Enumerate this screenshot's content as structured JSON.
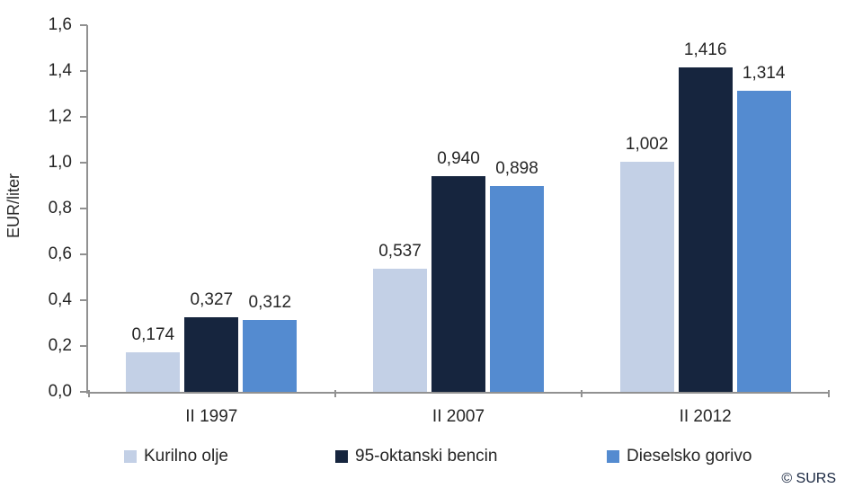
{
  "chart_data": {
    "type": "bar",
    "title": "",
    "ylabel": "EUR/liter",
    "xlabel": "",
    "categories": [
      "II 1997",
      "II 2007",
      "II 2012"
    ],
    "series": [
      {
        "name": "Kurilno olje",
        "color": "#c3d0e6",
        "values": [
          0.174,
          0.537,
          1.002
        ],
        "value_labels": [
          "0,174",
          "0,537",
          "1,002"
        ]
      },
      {
        "name": "95-oktanski bencin",
        "color": "#16253e",
        "values": [
          0.327,
          0.94,
          1.416
        ],
        "value_labels": [
          "0,327",
          "0,940",
          "1,416"
        ]
      },
      {
        "name": "Dieselsko gorivo",
        "color": "#548bd0",
        "values": [
          0.312,
          0.898,
          1.314
        ],
        "value_labels": [
          "0,312",
          "0,898",
          "1,314"
        ]
      }
    ],
    "ylim": [
      0,
      1.6
    ],
    "ytick_step": 0.2,
    "yticks": [
      "0,0",
      "0,2",
      "0,4",
      "0,6",
      "0,8",
      "1,0",
      "1,2",
      "1,4",
      "1,6"
    ],
    "grid": false,
    "legend_position": "bottom"
  },
  "footer": {
    "source": "© SURS"
  },
  "colors": {
    "axis": "#919191",
    "text": "#262626",
    "source_text": "#17253f"
  }
}
